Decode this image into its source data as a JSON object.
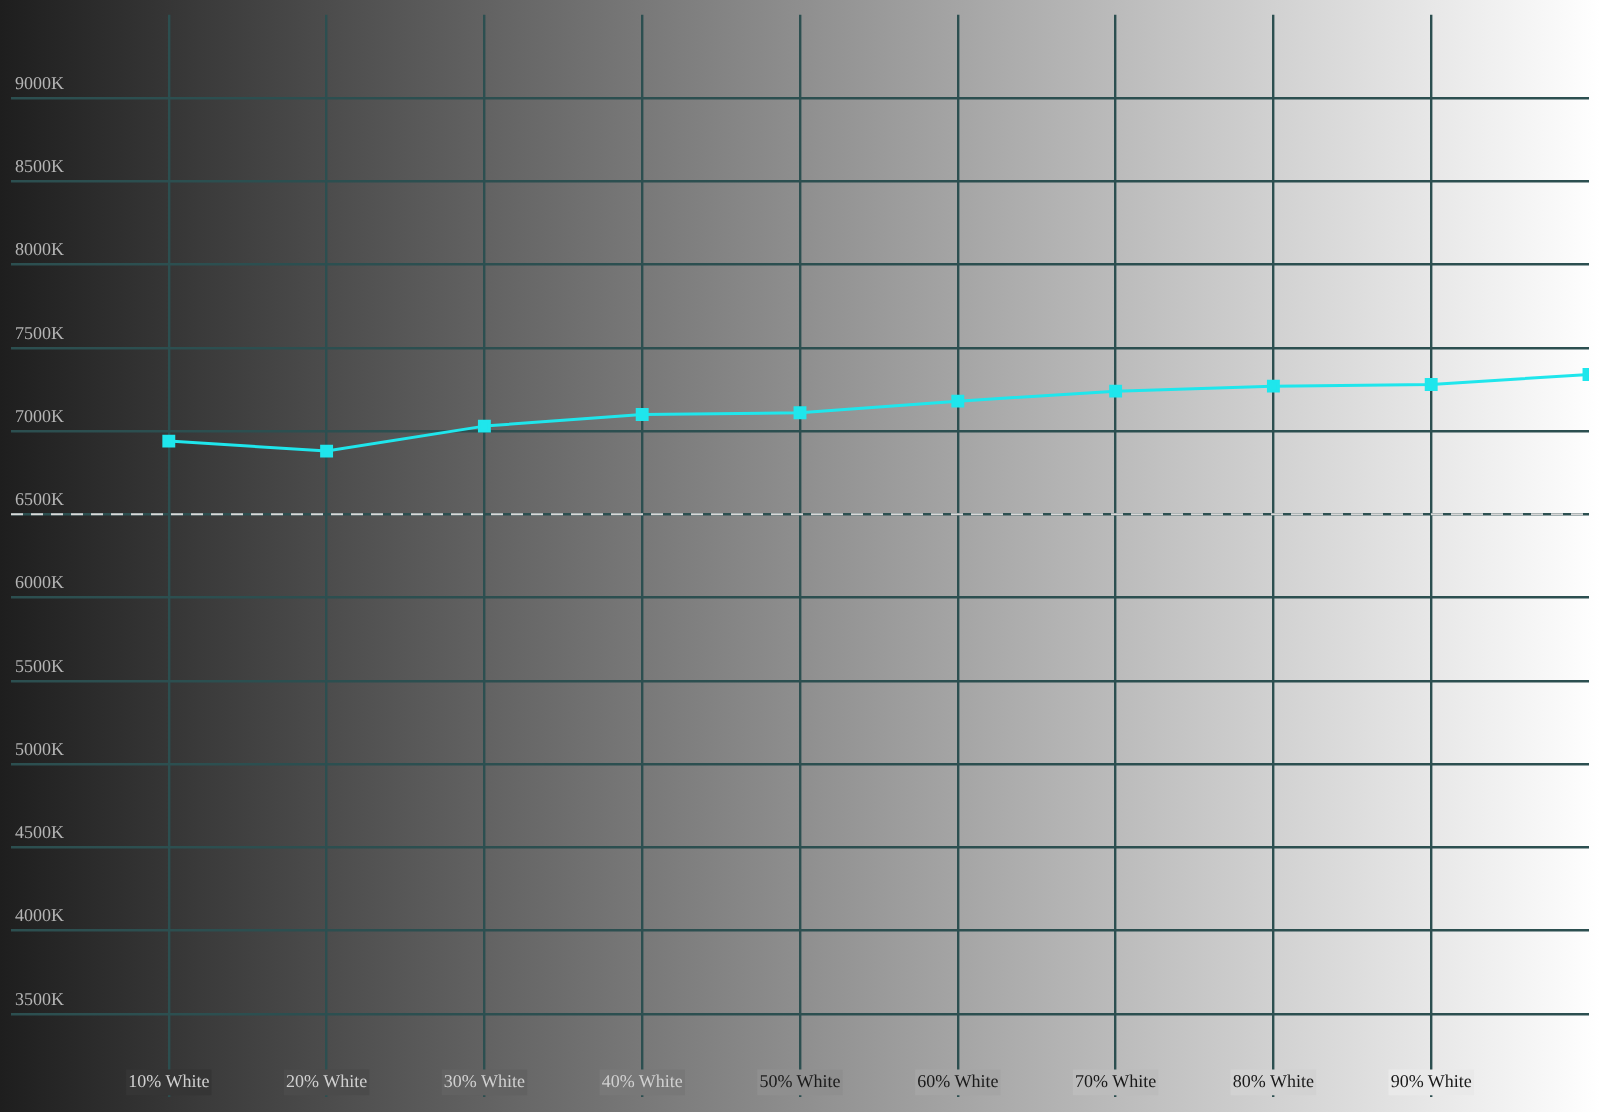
{
  "chart_data": {
    "type": "line",
    "x": [
      10,
      20,
      30,
      40,
      50,
      60,
      70,
      80,
      90,
      100
    ],
    "series": [
      {
        "color": "#1fe6ec",
        "values": [
          6940,
          6880,
          7030,
          7100,
          7110,
          7180,
          7240,
          7270,
          7280,
          7340
        ]
      }
    ],
    "xlim": [
      0,
      100
    ],
    "xticks": [
      {
        "value": 10,
        "label": "10% White"
      },
      {
        "value": 20,
        "label": "20% White"
      },
      {
        "value": 30,
        "label": "30% White"
      },
      {
        "value": 40,
        "label": "40% White"
      },
      {
        "value": 50,
        "label": "50% White"
      },
      {
        "value": 60,
        "label": "60% White"
      },
      {
        "value": 70,
        "label": "70% White"
      },
      {
        "value": 80,
        "label": "80% White"
      },
      {
        "value": 90,
        "label": "90% White"
      }
    ],
    "ylim": [
      3000,
      9500
    ],
    "yticks": [
      {
        "value": 3500,
        "label": "3500K"
      },
      {
        "value": 4000,
        "label": "4000K"
      },
      {
        "value": 4500,
        "label": "4500K"
      },
      {
        "value": 5000,
        "label": "5000K"
      },
      {
        "value": 5500,
        "label": "5500K"
      },
      {
        "value": 6000,
        "label": "6000K"
      },
      {
        "value": 6500,
        "label": "6500K"
      },
      {
        "value": 7000,
        "label": "7000K"
      },
      {
        "value": 7500,
        "label": "7500K"
      },
      {
        "value": 8000,
        "label": "8000K"
      },
      {
        "value": 8500,
        "label": "8500K"
      },
      {
        "value": 9000,
        "label": "9000K"
      }
    ],
    "ref_lines": [
      {
        "axis": "y",
        "value": 6500,
        "color": "#d8d8d8",
        "line_style": "dashed"
      }
    ],
    "grid": true,
    "legend": false,
    "marker": "square",
    "line_style": "solid"
  }
}
